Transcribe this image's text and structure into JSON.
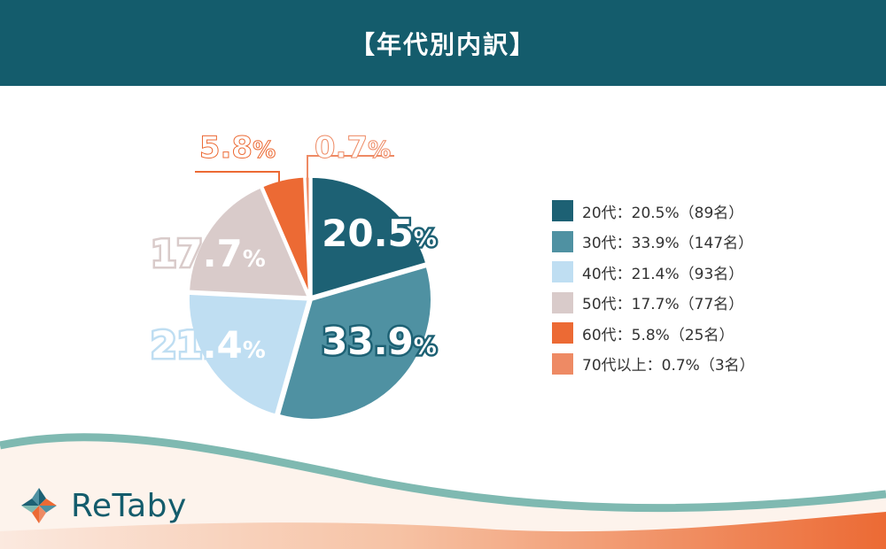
{
  "header": {
    "title": "【年代別内訳】"
  },
  "colors": {
    "header_bg": "#145c6c",
    "slice_20s": "#1d6174",
    "slice_30s": "#4f91a2",
    "slice_40s": "#bfdef2",
    "slice_50s": "#d9cbca",
    "slice_60s": "#ec6a34",
    "slice_70s": "#ee8a64"
  },
  "chart_data": {
    "type": "pie",
    "categories": [
      "20代",
      "30代",
      "40代",
      "50代",
      "60代",
      "70代以上"
    ],
    "values": [
      20.5,
      33.9,
      21.4,
      17.7,
      5.8,
      0.7
    ],
    "counts": [
      89,
      147,
      93,
      77,
      25,
      3
    ],
    "value_labels": [
      "20.5",
      "33.9",
      "21.4",
      "17.7",
      "5.8",
      "0.7"
    ],
    "percent_sign": "%",
    "legend": [
      "20代：20.5%（89名）",
      "30代：33.9%（147名）",
      "40代：21.4%（93名）",
      "50代：17.7%（77名）",
      "60代：5.8%（25名）",
      "70代以上：0.7%（3名）"
    ],
    "legend_position": "right",
    "colors": [
      "#1d6174",
      "#4f91a2",
      "#bfdef2",
      "#d9cbca",
      "#ec6a34",
      "#ee8a64"
    ]
  },
  "footer": {
    "logo_text": "ReTaby",
    "logo_icon": "pinwheel-logo-icon"
  }
}
